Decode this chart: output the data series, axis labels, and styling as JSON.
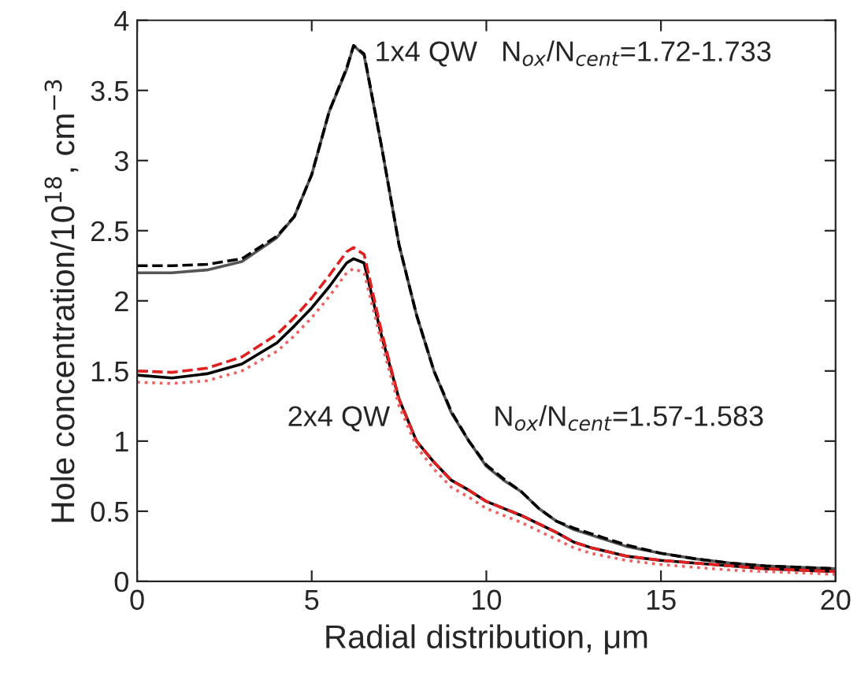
{
  "chart_data": {
    "type": "line",
    "xlabel": "Radial distribution, μm",
    "ylabel": "Hole concentration/10$^{18}$, cm$^{−3}$",
    "xlim": [
      0,
      20
    ],
    "ylim": [
      0,
      4
    ],
    "xticks": [
      0,
      5,
      10,
      15,
      20
    ],
    "yticks": [
      0,
      0.5,
      1,
      1.5,
      2,
      2.5,
      3,
      3.5,
      4
    ],
    "grid": false,
    "legend": false,
    "marker": "none",
    "x": [
      0,
      1,
      2,
      3,
      4,
      4.5,
      5,
      5.5,
      6,
      6.2,
      6.5,
      7,
      7.5,
      8,
      8.5,
      9,
      9.5,
      10,
      10.5,
      11,
      11.5,
      12,
      12.5,
      13,
      14,
      15,
      16,
      17,
      18,
      19,
      20
    ],
    "series": [
      {
        "color": "#555555",
        "line_style": "solid",
        "values": [
          2.2,
          2.2,
          2.22,
          2.28,
          2.45,
          2.6,
          2.9,
          3.35,
          3.65,
          3.82,
          3.75,
          3.1,
          2.4,
          1.9,
          1.5,
          1.2,
          1.0,
          0.82,
          0.72,
          0.64,
          0.52,
          0.43,
          0.37,
          0.33,
          0.25,
          0.2,
          0.16,
          0.13,
          0.11,
          0.1,
          0.09
        ]
      },
      {
        "color": "#000000",
        "line_style": "dashed",
        "values": [
          2.25,
          2.25,
          2.26,
          2.3,
          2.46,
          2.6,
          2.9,
          3.35,
          3.66,
          3.82,
          3.76,
          3.1,
          2.4,
          1.9,
          1.5,
          1.21,
          1.0,
          0.83,
          0.73,
          0.64,
          0.52,
          0.43,
          0.38,
          0.34,
          0.26,
          0.2,
          0.16,
          0.13,
          0.11,
          0.1,
          0.09
        ]
      },
      {
        "color": "#000000",
        "line_style": "solid",
        "values": [
          1.47,
          1.45,
          1.48,
          1.55,
          1.7,
          1.82,
          1.95,
          2.1,
          2.27,
          2.3,
          2.27,
          1.75,
          1.3,
          1.0,
          0.85,
          0.72,
          0.65,
          0.57,
          0.52,
          0.47,
          0.41,
          0.35,
          0.28,
          0.24,
          0.18,
          0.15,
          0.13,
          0.11,
          0.09,
          0.08,
          0.07
        ]
      },
      {
        "color": "#e02020",
        "line_style": "dashed",
        "values": [
          1.5,
          1.49,
          1.52,
          1.6,
          1.76,
          1.88,
          2.02,
          2.18,
          2.35,
          2.38,
          2.33,
          1.78,
          1.3,
          1.0,
          0.85,
          0.72,
          0.65,
          0.57,
          0.52,
          0.47,
          0.41,
          0.35,
          0.28,
          0.24,
          0.18,
          0.15,
          0.13,
          0.11,
          0.09,
          0.08,
          0.07
        ]
      },
      {
        "color": "#f06060",
        "line_style": "dotted",
        "values": [
          1.42,
          1.41,
          1.43,
          1.5,
          1.64,
          1.75,
          1.88,
          2.03,
          2.2,
          2.23,
          2.2,
          1.7,
          1.25,
          0.96,
          0.8,
          0.67,
          0.6,
          0.52,
          0.47,
          0.42,
          0.36,
          0.3,
          0.24,
          0.2,
          0.15,
          0.12,
          0.1,
          0.08,
          0.07,
          0.06,
          0.05
        ]
      }
    ],
    "annotations": [
      "1x4 QW   N$_{ox}$/N$_{cent}$=1.72-1.733",
      "2x4 QW",
      "N$_{ox}$/N$_{cent}$=1.57-1.583"
    ]
  }
}
